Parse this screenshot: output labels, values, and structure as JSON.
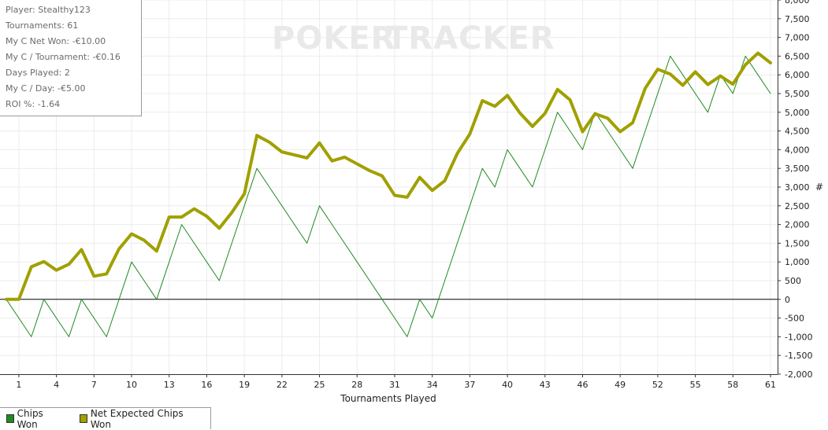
{
  "stats": {
    "lines": [
      "Player: Stealthy123",
      "Tournaments: 61",
      "My C Net Won: -€10.00",
      "My C / Tournament: -€0.16",
      "Days Played: 2",
      "My C / Day: -€5.00",
      "ROI %: -1.64"
    ]
  },
  "watermark": {
    "part1": "POKER",
    "part2": "TRACKER"
  },
  "legend": [
    {
      "label": "Chips Won",
      "color": "#1f8a1f"
    },
    {
      "label": "Net Expected Chips Won",
      "color": "#a0a000"
    }
  ],
  "chart_data": {
    "type": "line",
    "xlabel": "Tournaments Played",
    "ylabel": "#",
    "xlim": [
      0,
      62
    ],
    "ylim": [
      -2000,
      8000
    ],
    "xticks": [
      1,
      4,
      7,
      10,
      13,
      16,
      19,
      22,
      25,
      28,
      31,
      34,
      37,
      40,
      43,
      46,
      49,
      52,
      55,
      58,
      61
    ],
    "yticks": [
      -2000,
      -1500,
      -1000,
      -500,
      0,
      500,
      1000,
      1500,
      2000,
      2500,
      3000,
      3500,
      4000,
      4500,
      5000,
      5500,
      6000,
      6500,
      7000,
      7500,
      8000
    ],
    "ytick_labels": [
      "-2,000",
      "-1,500",
      "-1,000",
      "-500",
      "0",
      "500",
      "1,000",
      "1,500",
      "2,000",
      "2,500",
      "3,000",
      "3,500",
      "4,000",
      "4,500",
      "5,000",
      "5,500",
      "6,000",
      "6,500",
      "7,000",
      "7,500",
      "8,000"
    ],
    "grid": true,
    "legend_position": "bottom-left",
    "x": [
      0,
      1,
      2,
      3,
      4,
      5,
      6,
      7,
      8,
      9,
      10,
      11,
      12,
      13,
      14,
      15,
      16,
      17,
      18,
      19,
      20,
      21,
      22,
      23,
      24,
      25,
      26,
      27,
      28,
      29,
      30,
      31,
      32,
      33,
      34,
      35,
      36,
      37,
      38,
      39,
      40,
      41,
      42,
      43,
      44,
      45,
      46,
      47,
      48,
      49,
      50,
      51,
      52,
      53,
      54,
      55,
      56,
      57,
      58,
      59,
      60,
      61
    ],
    "series": [
      {
        "name": "Chips Won",
        "color": "#1f8a1f",
        "values": [
          0,
          -500,
          -1000,
          0,
          -500,
          -1000,
          0,
          -500,
          -1000,
          0,
          1000,
          500,
          0,
          1000,
          2000,
          1500,
          1000,
          500,
          1500,
          2500,
          3500,
          3000,
          2500,
          2000,
          1500,
          2500,
          2000,
          1500,
          1000,
          500,
          0,
          -500,
          -1000,
          0,
          -500,
          500,
          1500,
          2500,
          3500,
          3000,
          4000,
          3500,
          3000,
          4000,
          5000,
          4500,
          4000,
          5000,
          4500,
          4000,
          3500,
          4500,
          5500,
          6500,
          6000,
          5500,
          5000,
          6000,
          5500,
          6500,
          6000,
          5500
        ]
      },
      {
        "name": "Net Expected Chips Won",
        "color": "#a0a000",
        "values": [
          0,
          0,
          870,
          1010,
          780,
          940,
          1330,
          620,
          680,
          1350,
          1750,
          1580,
          1290,
          2200,
          2200,
          2420,
          2220,
          1900,
          2320,
          2820,
          4380,
          4200,
          3940,
          3860,
          3780,
          4180,
          3700,
          3800,
          3620,
          3440,
          3300,
          2780,
          2730,
          3260,
          2910,
          3170,
          3900,
          4420,
          5310,
          5160,
          5450,
          4980,
          4620,
          4970,
          5610,
          5330,
          4480,
          4960,
          4840,
          4480,
          4720,
          5640,
          6150,
          6020,
          5720,
          6080,
          5740,
          5970,
          5750,
          6270,
          6580,
          6320
        ]
      }
    ]
  }
}
